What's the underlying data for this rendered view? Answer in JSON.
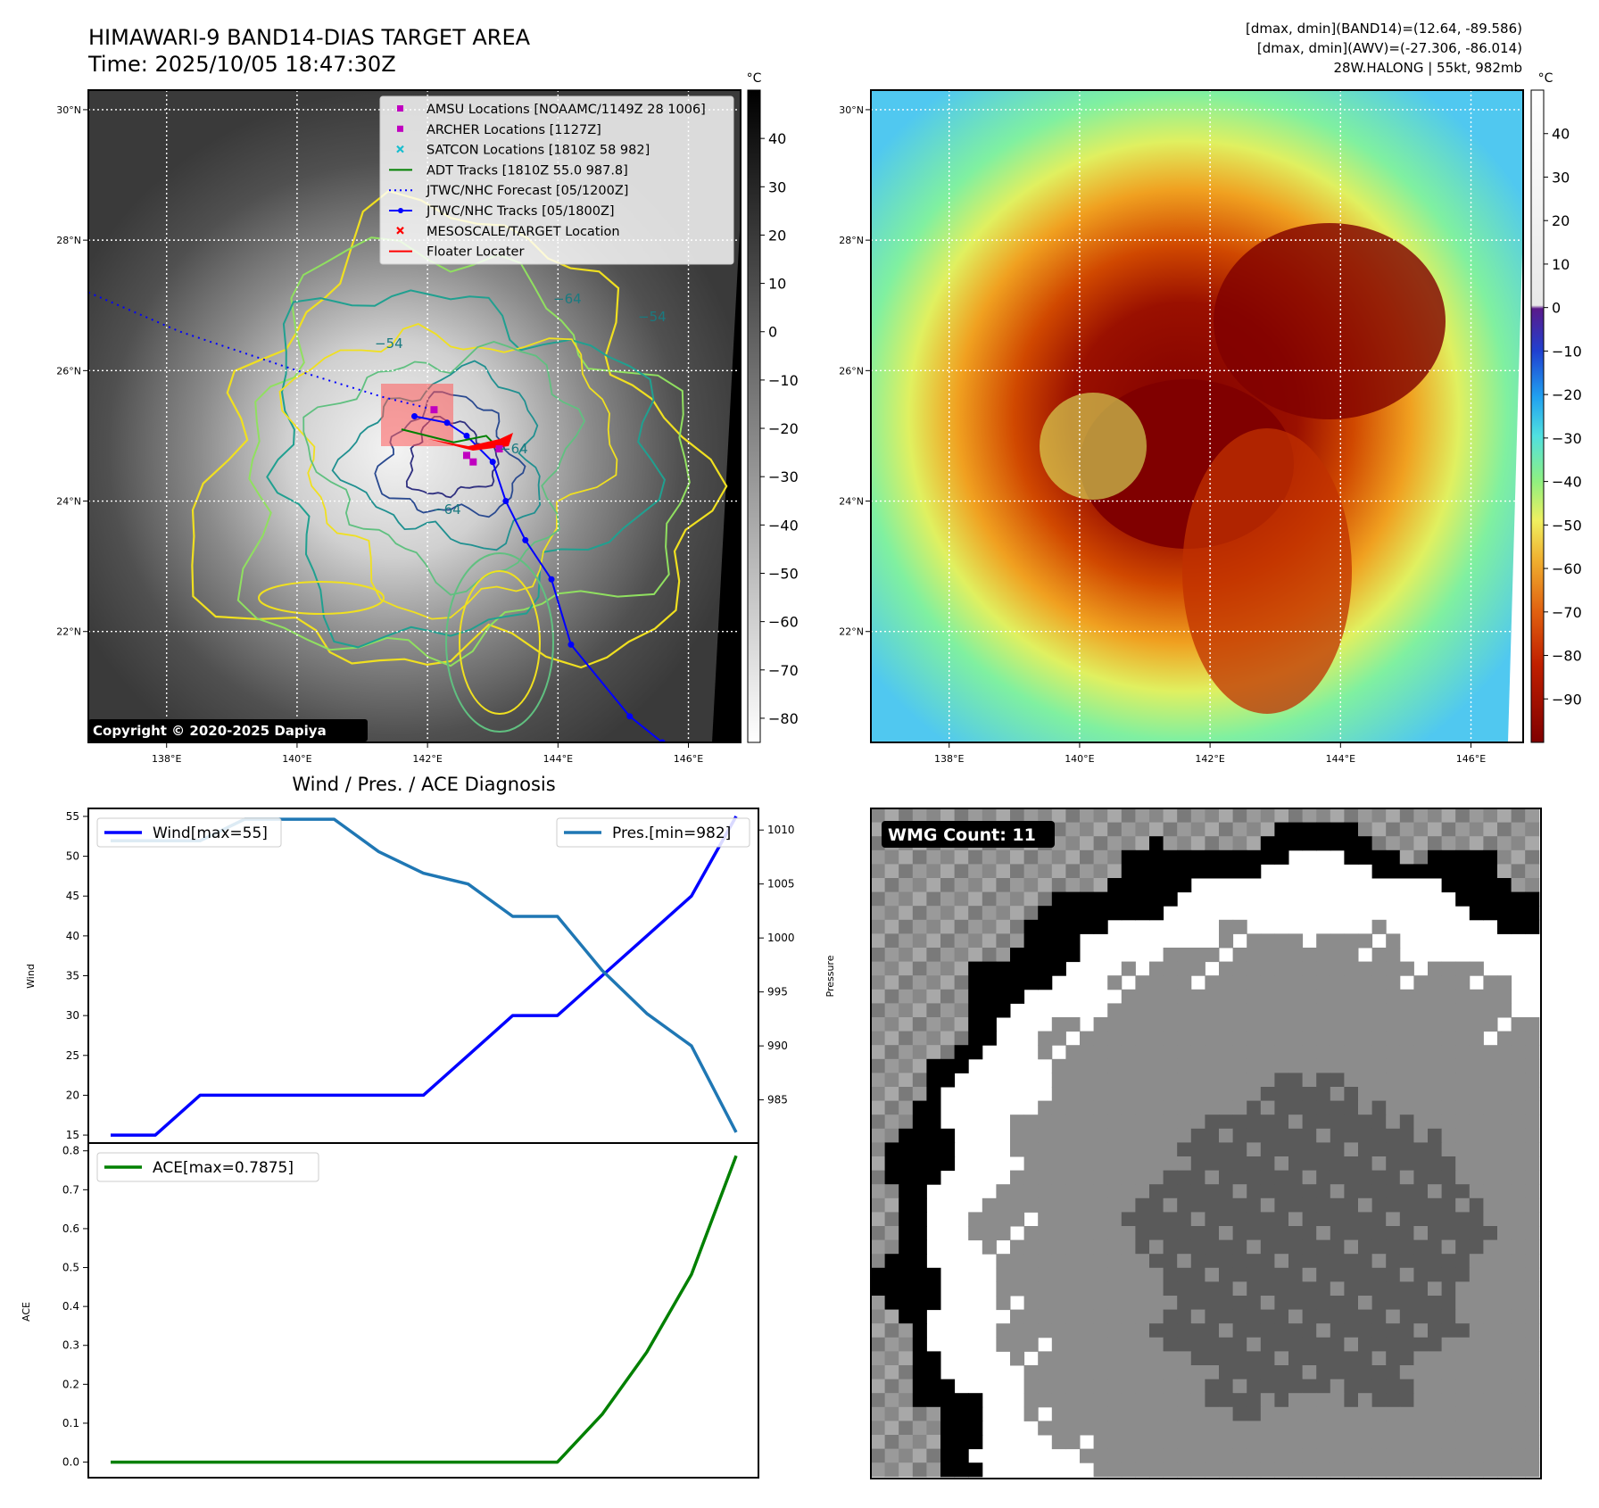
{
  "header": {
    "title": "HIMAWARI-9 BAND14-DIAS TARGET AREA",
    "time": "Time: 2025/10/05 18:47:30Z",
    "info_line1": "[dmax, dmin](BAND14)=(12.64, -89.586)",
    "info_line2": "[dmax, dmin](AWV)=(-27.306, -86.014)",
    "info_line3": "28W.HALONG | 55kt, 982mb"
  },
  "map_axes": {
    "lat_labels": [
      "30°N",
      "28°N",
      "26°N",
      "24°N",
      "22°N"
    ],
    "lat_values": [
      30,
      28,
      26,
      24,
      22
    ],
    "lon_labels": [
      "138°E",
      "140°E",
      "142°E",
      "144°E",
      "146°E"
    ],
    "lon_values": [
      138,
      140,
      142,
      144,
      146
    ],
    "lat_range": [
      20.3,
      30.3
    ],
    "lon_range": [
      136.8,
      146.8
    ]
  },
  "left_colorbar": {
    "unit": "°C",
    "ticks": [
      "40",
      "30",
      "20",
      "10",
      "0",
      "−10",
      "−20",
      "−30",
      "−40",
      "−50",
      "−60",
      "−70",
      "−80"
    ],
    "tick_values": [
      40,
      30,
      20,
      10,
      0,
      -10,
      -20,
      -30,
      -40,
      -50,
      -60,
      -70,
      -80
    ],
    "range": [
      -85,
      50
    ]
  },
  "right_colorbar": {
    "unit": "°C",
    "ticks": [
      "40",
      "30",
      "20",
      "10",
      "0",
      "−10",
      "−20",
      "−30",
      "−40",
      "−50",
      "−60",
      "−70",
      "−80",
      "−90"
    ],
    "tick_values": [
      40,
      30,
      20,
      10,
      0,
      -10,
      -20,
      -30,
      -40,
      -50,
      -60,
      -70,
      -80,
      -90
    ],
    "range": [
      -100,
      50
    ]
  },
  "legend": {
    "items": [
      {
        "label": "AMSU Locations [NOAAMC/1149Z 28 1006]",
        "marker": "square",
        "color": "#c000c0"
      },
      {
        "label": "ARCHER Locations [1127Z]",
        "marker": "square",
        "color": "#c000c0"
      },
      {
        "label": "SATCON Locations [1810Z 58 982]",
        "marker": "x",
        "color": "#17becf"
      },
      {
        "label": "ADT Tracks [1810Z 55.0 987.8]",
        "marker": "line",
        "color": "#008000"
      },
      {
        "label": "JTWC/NHC Forecast [05/1200Z]",
        "marker": "dotted",
        "color": "#0000ff"
      },
      {
        "label": "JTWC/NHC Tracks [05/1800Z]",
        "marker": "line-dot",
        "color": "#0000ff"
      },
      {
        "label": "MESOSCALE/TARGET Location",
        "marker": "x",
        "color": "#ff0000"
      },
      {
        "label": "Floater Locater",
        "marker": "line",
        "color": "#ff0000"
      }
    ]
  },
  "copyright": "Copyright © 2020-2025 Dapiya",
  "contour_labels": [
    "−64",
    "−64",
    "−54",
    "−64",
    "−54"
  ],
  "wmg": {
    "label": "WMG Count: 11"
  },
  "chart_data": [
    {
      "type": "line",
      "title": "Wind / Pres. / ACE Diagnosis",
      "ylabel": "Wind",
      "ylabel_right": "Pressure",
      "x": [
        0,
        1,
        2,
        3,
        4,
        5,
        6,
        7,
        8,
        9,
        10,
        11,
        12,
        13,
        14,
        15
      ],
      "series": [
        {
          "name": "Wind[max=55]",
          "axis": "left",
          "color": "#0000ff",
          "values": [
            15,
            15,
            20,
            20,
            20,
            20,
            20,
            20,
            25,
            30,
            30,
            35,
            40,
            45,
            55,
            null
          ]
        },
        {
          "name": "Pres.[min=982]",
          "axis": "right",
          "color": "#1f77b4",
          "values": [
            1009,
            1009,
            1009,
            1011,
            1011,
            1011,
            1008,
            1006,
            1005,
            1002,
            1002,
            997,
            993,
            990,
            982,
            null
          ]
        }
      ],
      "yticks": [
        15,
        20,
        25,
        30,
        35,
        40,
        45,
        50,
        55
      ],
      "yticks_right": [
        985,
        990,
        995,
        1000,
        1005,
        1010
      ],
      "ylim": [
        14,
        56
      ],
      "ylim_right": [
        981,
        1012
      ],
      "legend": "top"
    },
    {
      "type": "line",
      "ylabel": "ACE",
      "x": [
        0,
        1,
        2,
        3,
        4,
        5,
        6,
        7,
        8,
        9,
        10,
        11,
        12,
        13,
        14
      ],
      "series": [
        {
          "name": "ACE[max=0.7875]",
          "color": "#008000",
          "values": [
            0,
            0,
            0,
            0,
            0,
            0,
            0,
            0,
            0,
            0,
            0,
            0.1225,
            0.2825,
            0.4825,
            0.7875
          ]
        }
      ],
      "yticks": [
        0.0,
        0.1,
        0.2,
        0.3,
        0.4,
        0.5,
        0.6,
        0.7,
        0.8
      ],
      "ylim": [
        -0.04,
        0.82
      ],
      "legend": "top-left"
    }
  ]
}
